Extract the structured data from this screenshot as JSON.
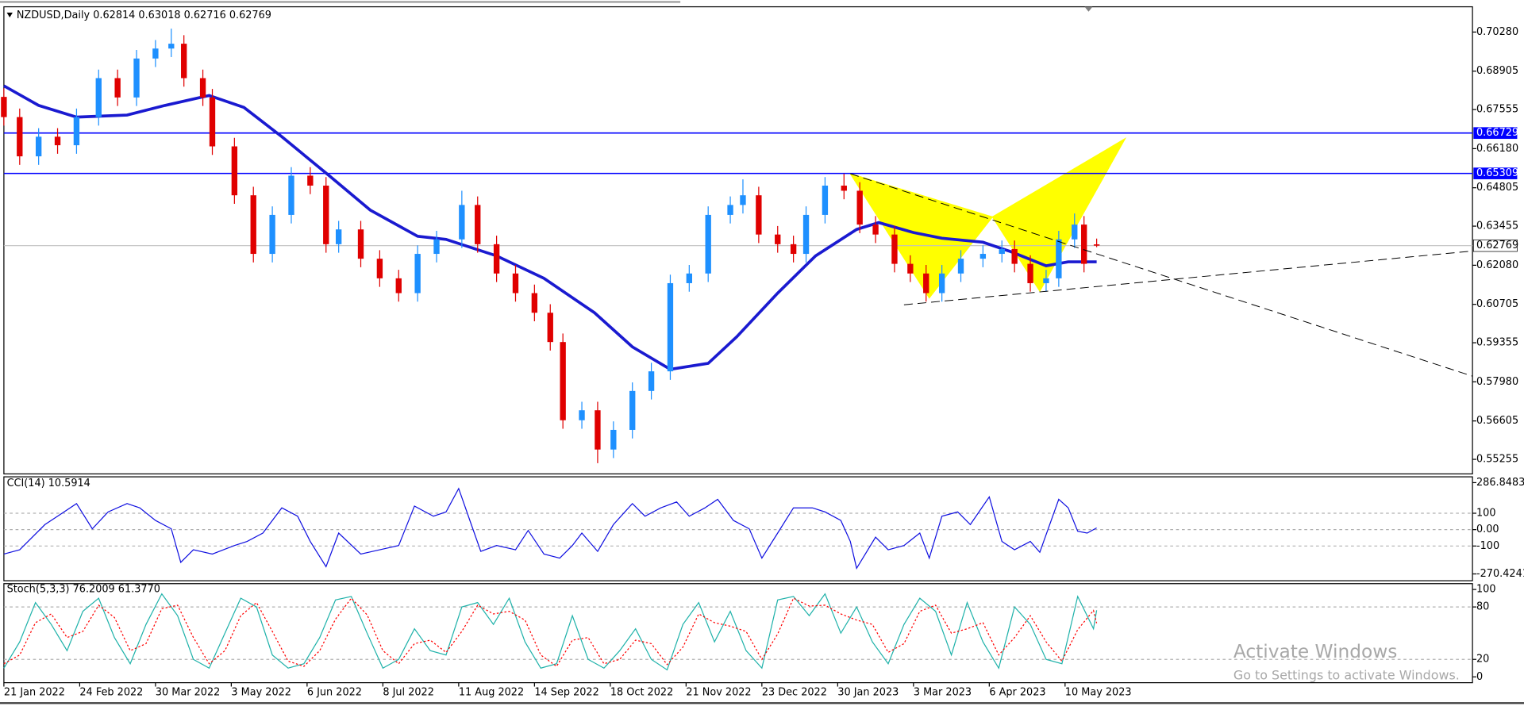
{
  "chart_data": [
    {
      "type": "candlestick",
      "title": "NZDUSD,Daily  0.62814 0.63018 0.62716 0.62769",
      "up_color": "#1e90ff",
      "down_color": "#e00000",
      "xlim": [
        0,
        465
      ],
      "ylim": [
        0.54743,
        0.71168
      ],
      "yticks": [
        {
          "value": 0.7028,
          "label": "0.70280"
        },
        {
          "value": 0.68905,
          "label": "0.68905"
        },
        {
          "value": 0.67555,
          "label": "0.67555"
        },
        {
          "value": 0.6618,
          "label": "0.66180"
        },
        {
          "value": 0.64805,
          "label": "0.64805"
        },
        {
          "value": 0.63455,
          "label": "0.63455"
        },
        {
          "value": 0.6208,
          "label": "0.62080"
        },
        {
          "value": 0.60705,
          "label": "0.60705"
        },
        {
          "value": 0.59355,
          "label": "0.59355"
        },
        {
          "value": 0.5798,
          "label": "0.57980"
        },
        {
          "value": 0.56605,
          "label": "0.56605"
        },
        {
          "value": 0.55255,
          "label": "0.55255"
        }
      ],
      "grid": false,
      "x": [
        0,
        5,
        11,
        17,
        23,
        30,
        36,
        42,
        48,
        53,
        57,
        63,
        66,
        73,
        79,
        85,
        91,
        97,
        102,
        106,
        113,
        119,
        125,
        131,
        137,
        145,
        150,
        156,
        162,
        168,
        173,
        177,
        183,
        188,
        193,
        199,
        205,
        211,
        217,
        223,
        230,
        234,
        239,
        245,
        250,
        254,
        260,
        266,
        271,
        276,
        282,
        287,
        292,
        297,
        303,
        310,
        316,
        320,
        325,
        330,
        334,
        339,
        342,
        346
      ],
      "open": [
        0.68,
        0.6729,
        0.6591,
        0.666,
        0.663,
        0.6729,
        0.6866,
        0.6798,
        0.6935,
        0.697,
        0.6987,
        0.6866,
        0.6798,
        0.6626,
        0.6454,
        0.6248,
        0.6385,
        0.6523,
        0.6488,
        0.6282,
        0.6334,
        0.6231,
        0.6162,
        0.611,
        0.6248,
        0.6299,
        0.642,
        0.6282,
        0.6179,
        0.611,
        0.6041,
        0.5938,
        0.5663,
        0.5698,
        0.556,
        0.5629,
        0.5766,
        0.5835,
        0.6145,
        0.6179,
        0.6385,
        0.642,
        0.6454,
        0.6316,
        0.6282,
        0.6248,
        0.6385,
        0.6488,
        0.647,
        0.6351,
        0.6316,
        0.6213,
        0.6179,
        0.611,
        0.6179,
        0.6231,
        0.6248,
        0.6265,
        0.6213,
        0.6145,
        0.6162,
        0.6299,
        0.6351,
        0.62814
      ],
      "high": [
        0.683,
        0.6759,
        0.669,
        0.669,
        0.6759,
        0.6896,
        0.6896,
        0.6965,
        0.7,
        0.704,
        0.7017,
        0.6896,
        0.6828,
        0.6656,
        0.6484,
        0.6415,
        0.6553,
        0.6553,
        0.6518,
        0.6364,
        0.6364,
        0.6261,
        0.6192,
        0.6278,
        0.6329,
        0.647,
        0.645,
        0.6312,
        0.6209,
        0.614,
        0.6071,
        0.5968,
        0.5728,
        0.5728,
        0.5659,
        0.5796,
        0.5865,
        0.6175,
        0.6209,
        0.6415,
        0.645,
        0.651,
        0.6484,
        0.6346,
        0.6312,
        0.6415,
        0.6518,
        0.653,
        0.65,
        0.6381,
        0.6346,
        0.6243,
        0.6209,
        0.6209,
        0.6261,
        0.6278,
        0.6295,
        0.6295,
        0.6243,
        0.6192,
        0.6329,
        0.639,
        0.6381,
        0.63018
      ],
      "low": [
        0.6699,
        0.6561,
        0.6561,
        0.66,
        0.66,
        0.6699,
        0.6768,
        0.6768,
        0.6905,
        0.694,
        0.6836,
        0.6768,
        0.6596,
        0.6424,
        0.6218,
        0.6218,
        0.6355,
        0.6458,
        0.6252,
        0.6252,
        0.6201,
        0.6132,
        0.608,
        0.608,
        0.6218,
        0.6269,
        0.6252,
        0.6149,
        0.608,
        0.6011,
        0.5908,
        0.5633,
        0.5633,
        0.5512,
        0.553,
        0.5599,
        0.5736,
        0.5805,
        0.6115,
        0.6149,
        0.6355,
        0.639,
        0.6286,
        0.6252,
        0.6218,
        0.6218,
        0.6355,
        0.644,
        0.6321,
        0.6286,
        0.6183,
        0.6149,
        0.608,
        0.608,
        0.6149,
        0.6201,
        0.6218,
        0.6183,
        0.6115,
        0.6115,
        0.6132,
        0.6269,
        0.6183,
        0.62716
      ],
      "close": [
        0.6729,
        0.6591,
        0.666,
        0.663,
        0.6729,
        0.6866,
        0.6798,
        0.6935,
        0.697,
        0.6987,
        0.6866,
        0.6798,
        0.6626,
        0.6454,
        0.6248,
        0.6385,
        0.6523,
        0.6488,
        0.6282,
        0.6334,
        0.6231,
        0.6162,
        0.611,
        0.6248,
        0.6299,
        0.642,
        0.6282,
        0.6179,
        0.611,
        0.6041,
        0.5938,
        0.5663,
        0.5698,
        0.556,
        0.5629,
        0.5766,
        0.5835,
        0.6145,
        0.6179,
        0.6385,
        0.642,
        0.6454,
        0.6316,
        0.6282,
        0.6248,
        0.6385,
        0.6488,
        0.647,
        0.6351,
        0.6316,
        0.6213,
        0.6179,
        0.611,
        0.6179,
        0.6231,
        0.6248,
        0.6265,
        0.6213,
        0.6145,
        0.6162,
        0.6299,
        0.6351,
        0.6213,
        0.62769
      ],
      "overlays": [
        {
          "color": "#1a1ad0",
          "x": [
            0,
            11,
            23,
            39,
            51,
            65,
            76,
            88,
            103,
            116,
            131,
            140,
            156,
            171,
            187,
            199,
            211,
            223,
            232,
            245,
            257,
            270,
            277,
            288,
            297,
            310,
            319,
            330,
            337,
            346
          ],
          "values": [
            0.6839,
            0.677,
            0.6729,
            0.6736,
            0.677,
            0.6805,
            0.6763,
            0.666,
            0.6523,
            0.6402,
            0.631,
            0.6299,
            0.6241,
            0.6162,
            0.6041,
            0.5921,
            0.5842,
            0.5863,
            0.5956,
            0.611,
            0.6241,
            0.6334,
            0.6358,
            0.6323,
            0.6303,
            0.6289,
            0.6255,
            0.6206,
            0.622,
            0.622
          ]
        }
      ],
      "levels": [
        {
          "value": 0.66729,
          "label": "0.66729",
          "color": "#0000ff"
        },
        {
          "value": 0.65309,
          "label": "0.65309",
          "color": "#0000ff"
        }
      ],
      "last_price": {
        "value": 0.62769,
        "label": "0.62769",
        "color": "#c0c0c0"
      },
      "pattern": {
        "x": [
          268,
          293,
          313,
          328,
          355
        ],
        "y": [
          0.653,
          0.6093,
          0.6378,
          0.6117,
          0.6653
        ],
        "color": "#ffff00"
      },
      "trendlines": [
        {
          "x": [
            268,
            465
          ],
          "y": [
            0.653,
            0.5818
          ]
        },
        {
          "x": [
            285,
            465
          ],
          "y": [
            0.6069,
            0.6258
          ]
        }
      ]
    },
    {
      "type": "line",
      "title": "CCI(14) 10.5914",
      "xlim": [
        0,
        465
      ],
      "ylim": [
        -270.4241,
        286.8483
      ],
      "yticks": [
        286.8483,
        100,
        {
          "value": 0,
          "label": "0.00"
        },
        -100,
        -270.4241
      ],
      "grid": true,
      "x": [
        0,
        5,
        13,
        17,
        23,
        28,
        33,
        39,
        43,
        48,
        53,
        56,
        60,
        66,
        73,
        77,
        82,
        88,
        93,
        97,
        102,
        106,
        113,
        119,
        125,
        130,
        136,
        140,
        144,
        148,
        151,
        156,
        162,
        166,
        171,
        176,
        180,
        183,
        188,
        193,
        199,
        203,
        208,
        213,
        217,
        222,
        226,
        231,
        236,
        240,
        245,
        250,
        256,
        260,
        265,
        268,
        270,
        276,
        280,
        285,
        290,
        293,
        297,
        302,
        306,
        312,
        316,
        320,
        325,
        328,
        334,
        337,
        340,
        343,
        346
      ],
      "series": [
        {
          "color": "#1010e0",
          "values": [
            -149,
            -123,
            31,
            82,
            159,
            5,
            108,
            159,
            133,
            56,
            5,
            -200,
            -123,
            -149,
            -97,
            -72,
            -21,
            133,
            82,
            -72,
            -226,
            -21,
            -149,
            -123,
            -97,
            144,
            82,
            108,
            251,
            31,
            -133,
            -97,
            -123,
            -5,
            -149,
            -174,
            -97,
            -21,
            -133,
            31,
            159,
            82,
            133,
            169,
            82,
            133,
            185,
            56,
            5,
            -174,
            -21,
            133,
            133,
            108,
            56,
            -72,
            -236,
            -46,
            -123,
            -97,
            -21,
            -174,
            82,
            108,
            31,
            200,
            -72,
            -123,
            -72,
            -138,
            185,
            133,
            -10,
            -21,
            10.5914
          ]
        }
      ]
    },
    {
      "type": "line",
      "title": "Stoch(5,3,3) 76.2009 61.3770",
      "xlim": [
        0,
        465
      ],
      "xticks": [
        {
          "value": 0,
          "label": "21 Jan 2022"
        },
        {
          "value": 24,
          "label": "24 Feb 2022"
        },
        {
          "value": 48,
          "label": "30 Mar 2022"
        },
        {
          "value": 72,
          "label": "3 May 2022"
        },
        {
          "value": 96,
          "label": "6 Jun 2022"
        },
        {
          "value": 120,
          "label": "8 Jul 2022"
        },
        {
          "value": 144,
          "label": "11 Aug 2022"
        },
        {
          "value": 168,
          "label": "14 Sep 2022"
        },
        {
          "value": 192,
          "label": "18 Oct 2022"
        },
        {
          "value": 216,
          "label": "21 Nov 2022"
        },
        {
          "value": 240,
          "label": "23 Dec 2022"
        },
        {
          "value": 264,
          "label": "30 Jan 2023"
        },
        {
          "value": 288,
          "label": "3 Mar 2023"
        },
        {
          "value": 312,
          "label": "6 Apr 2023"
        },
        {
          "value": 336,
          "label": "10 May 2023"
        }
      ],
      "ylim": [
        0,
        100
      ],
      "yticks": [
        100,
        80,
        20,
        0
      ],
      "grid": true,
      "x": [
        0,
        5,
        10,
        15,
        20,
        25,
        30,
        35,
        40,
        45,
        50,
        55,
        60,
        65,
        70,
        75,
        80,
        85,
        90,
        95,
        100,
        105,
        110,
        115,
        120,
        125,
        130,
        135,
        140,
        145,
        150,
        155,
        160,
        165,
        170,
        175,
        180,
        185,
        190,
        195,
        200,
        205,
        210,
        215,
        220,
        225,
        230,
        235,
        240,
        245,
        250,
        255,
        260,
        265,
        270,
        275,
        280,
        285,
        290,
        295,
        300,
        305,
        310,
        315,
        320,
        325,
        330,
        335,
        340,
        345,
        346
      ],
      "series": [
        {
          "color": "#20b2aa",
          "values": [
            10,
            40,
            85,
            60,
            30,
            75,
            90,
            45,
            15,
            60,
            95,
            70,
            20,
            10,
            50,
            90,
            80,
            25,
            10,
            15,
            45,
            88,
            92,
            50,
            10,
            20,
            55,
            30,
            25,
            80,
            85,
            60,
            90,
            40,
            10,
            15,
            70,
            20,
            10,
            30,
            55,
            20,
            8,
            60,
            85,
            40,
            75,
            30,
            10,
            88,
            92,
            70,
            95,
            50,
            80,
            40,
            15,
            60,
            90,
            75,
            25,
            85,
            40,
            10,
            80,
            60,
            20,
            15,
            92,
            55,
            76.2009
          ]
        },
        {
          "color": "#ff0000",
          "dash": true,
          "values": [
            15,
            25,
            62,
            72,
            45,
            52,
            82,
            68,
            30,
            38,
            78,
            82,
            45,
            15,
            30,
            70,
            85,
            52,
            18,
            12,
            30,
            66,
            90,
            71,
            30,
            15,
            38,
            42,
            28,
            52,
            82,
            72,
            75,
            65,
            25,
            12,
            42,
            45,
            15,
            20,
            42,
            38,
            14,
            34,
            72,
            62,
            58,
            52,
            20,
            49,
            90,
            81,
            82,
            72,
            65,
            60,
            28,
            38,
            75,
            82,
            50,
            55,
            62,
            25,
            45,
            70,
            40,
            18,
            54,
            76,
            61.377
          ]
        }
      ]
    }
  ],
  "watermark": {
    "line1": "Activate Windows",
    "line2": "Go to Settings to activate Windows."
  }
}
